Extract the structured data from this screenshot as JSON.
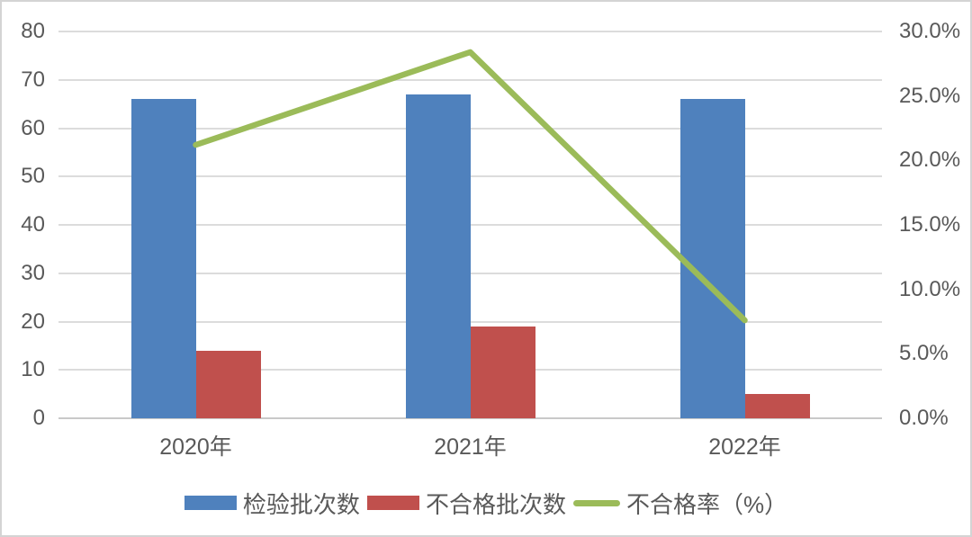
{
  "chart_data": {
    "type": "bar",
    "subtype": "bar+line-dual-axis",
    "title": "",
    "categories": [
      "2020年",
      "2021年",
      "2022年"
    ],
    "series": [
      {
        "key": "inspection-batch-count",
        "name": "检验批次数",
        "type": "bar",
        "axis": "left",
        "color": "#4F81BD",
        "values": [
          66,
          67,
          66
        ]
      },
      {
        "key": "unqualified-batch-count",
        "name": "不合格批次数",
        "type": "bar",
        "axis": "left",
        "color": "#C0504D",
        "values": [
          14,
          19,
          5
        ]
      },
      {
        "key": "unqualified-rate",
        "name": "不合格率（%）",
        "type": "line",
        "axis": "right",
        "color": "#9BBB59",
        "values": [
          21.2,
          28.4,
          7.6
        ]
      }
    ],
    "left_axis": {
      "min": 0,
      "max": 80,
      "step": 10,
      "ticks": [
        "0",
        "10",
        "20",
        "30",
        "40",
        "50",
        "60",
        "70",
        "80"
      ]
    },
    "right_axis": {
      "min": 0,
      "max": 30,
      "step": 5,
      "ticks": [
        "0.0%",
        "5.0%",
        "10.0%",
        "15.0%",
        "20.0%",
        "25.0%",
        "30.0%"
      ]
    },
    "grid": true,
    "legend_position": "bottom",
    "colors": {
      "grid": "#DCDCDC",
      "axis_line": "#C9C9C9",
      "axis_text": "#595959",
      "border": "#D4D4D4",
      "background": "#FFFFFF"
    }
  }
}
